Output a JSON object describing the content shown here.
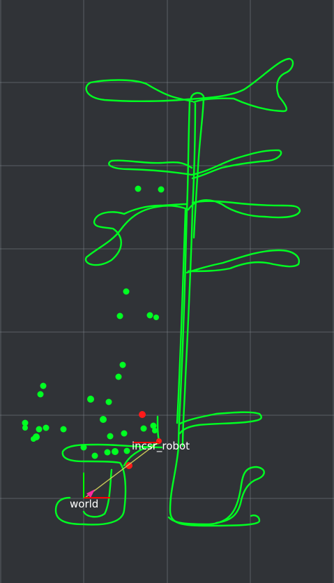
{
  "frames": {
    "robot_label": "incsr_robot",
    "world_label": "world"
  },
  "colors": {
    "background": "#303337",
    "grid": "#9aa0a6",
    "path": "#00ff22",
    "landmark": "#00ff22",
    "observation": "#ff1a1a",
    "link": "#c8c858",
    "axis_x": "#ff0000",
    "axis_y": "#00ff00",
    "pose_arrow": "#ff2aa0"
  }
}
